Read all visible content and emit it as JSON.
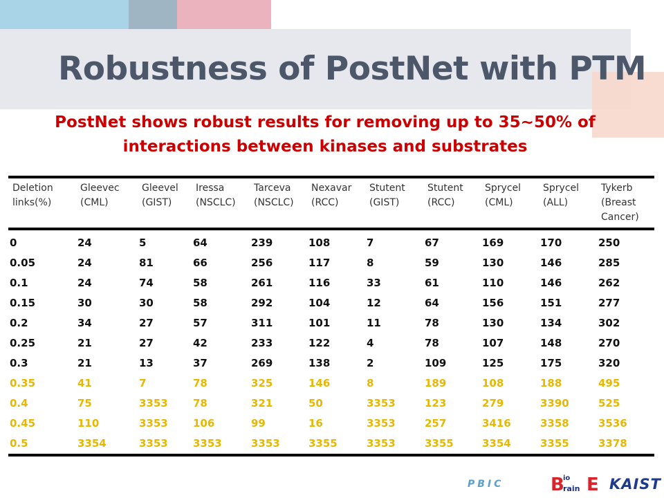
{
  "slide": {
    "title": "Robustness of PostNet with PTM",
    "subtitle": "PostNet shows robust results for removing up to 35~50% of interactions between kinases and substrates",
    "highlight_color": "#e6b800",
    "subtitle_color": "#cc0000"
  },
  "table": {
    "headers": [
      [
        "Deletion",
        "links(%)"
      ],
      [
        "Gleevec",
        "(CML)"
      ],
      [
        "Gleevel",
        "(GIST)"
      ],
      [
        "Iressa",
        "(NSCLC)"
      ],
      [
        "Tarceva",
        "(NSCLC)"
      ],
      [
        "Nexavar",
        "(RCC)"
      ],
      [
        "Stutent",
        "(GIST)"
      ],
      [
        "Stutent",
        "(RCC)"
      ],
      [
        "Sprycel",
        "(CML)"
      ],
      [
        "Sprycel",
        "(ALL)"
      ],
      [
        "Tykerb",
        "(Breast",
        "Cancer)"
      ]
    ],
    "rows": [
      {
        "highlight": false,
        "cells": [
          "0",
          "24",
          "5",
          "64",
          "239",
          "108",
          "7",
          "67",
          "169",
          "170",
          "250"
        ]
      },
      {
        "highlight": false,
        "cells": [
          "0.05",
          "24",
          "81",
          "66",
          "256",
          "117",
          "8",
          "59",
          "130",
          "146",
          "285"
        ]
      },
      {
        "highlight": false,
        "cells": [
          "0.1",
          "24",
          "74",
          "58",
          "261",
          "116",
          "33",
          "61",
          "110",
          "146",
          "262"
        ]
      },
      {
        "highlight": false,
        "cells": [
          "0.15",
          "30",
          "30",
          "58",
          "292",
          "104",
          "12",
          "64",
          "156",
          "151",
          "277"
        ]
      },
      {
        "highlight": false,
        "cells": [
          "0.2",
          "34",
          "27",
          "57",
          "311",
          "101",
          "11",
          "78",
          "130",
          "134",
          "302"
        ]
      },
      {
        "highlight": false,
        "cells": [
          "0.25",
          "21",
          "27",
          "42",
          "233",
          "122",
          "4",
          "78",
          "107",
          "148",
          "270"
        ]
      },
      {
        "highlight": false,
        "cells": [
          "0.3",
          "21",
          "13",
          "37",
          "269",
          "138",
          "2",
          "109",
          "125",
          "175",
          "320"
        ]
      },
      {
        "highlight": true,
        "cells": [
          "0.35",
          "41",
          "7",
          "78",
          "325",
          "146",
          "8",
          "189",
          "108",
          "188",
          "495"
        ]
      },
      {
        "highlight": true,
        "cells": [
          "0.4",
          "75",
          "3353",
          "78",
          "321",
          "50",
          "3353",
          "123",
          "279",
          "3390",
          "525"
        ]
      },
      {
        "highlight": true,
        "cells": [
          "0.45",
          "110",
          "3353",
          "106",
          "99",
          "16",
          "3353",
          "257",
          "3416",
          "3358",
          "3536"
        ]
      },
      {
        "highlight": true,
        "cells": [
          "0.5",
          "3354",
          "3353",
          "3353",
          "3353",
          "3355",
          "3353",
          "3355",
          "3354",
          "3355",
          "3378"
        ]
      }
    ]
  },
  "logos": {
    "pbic": "PBIC",
    "bio": "B",
    "bio_small": "io",
    "brain": "rain",
    "e": "E",
    "kaist": "KAIST"
  }
}
